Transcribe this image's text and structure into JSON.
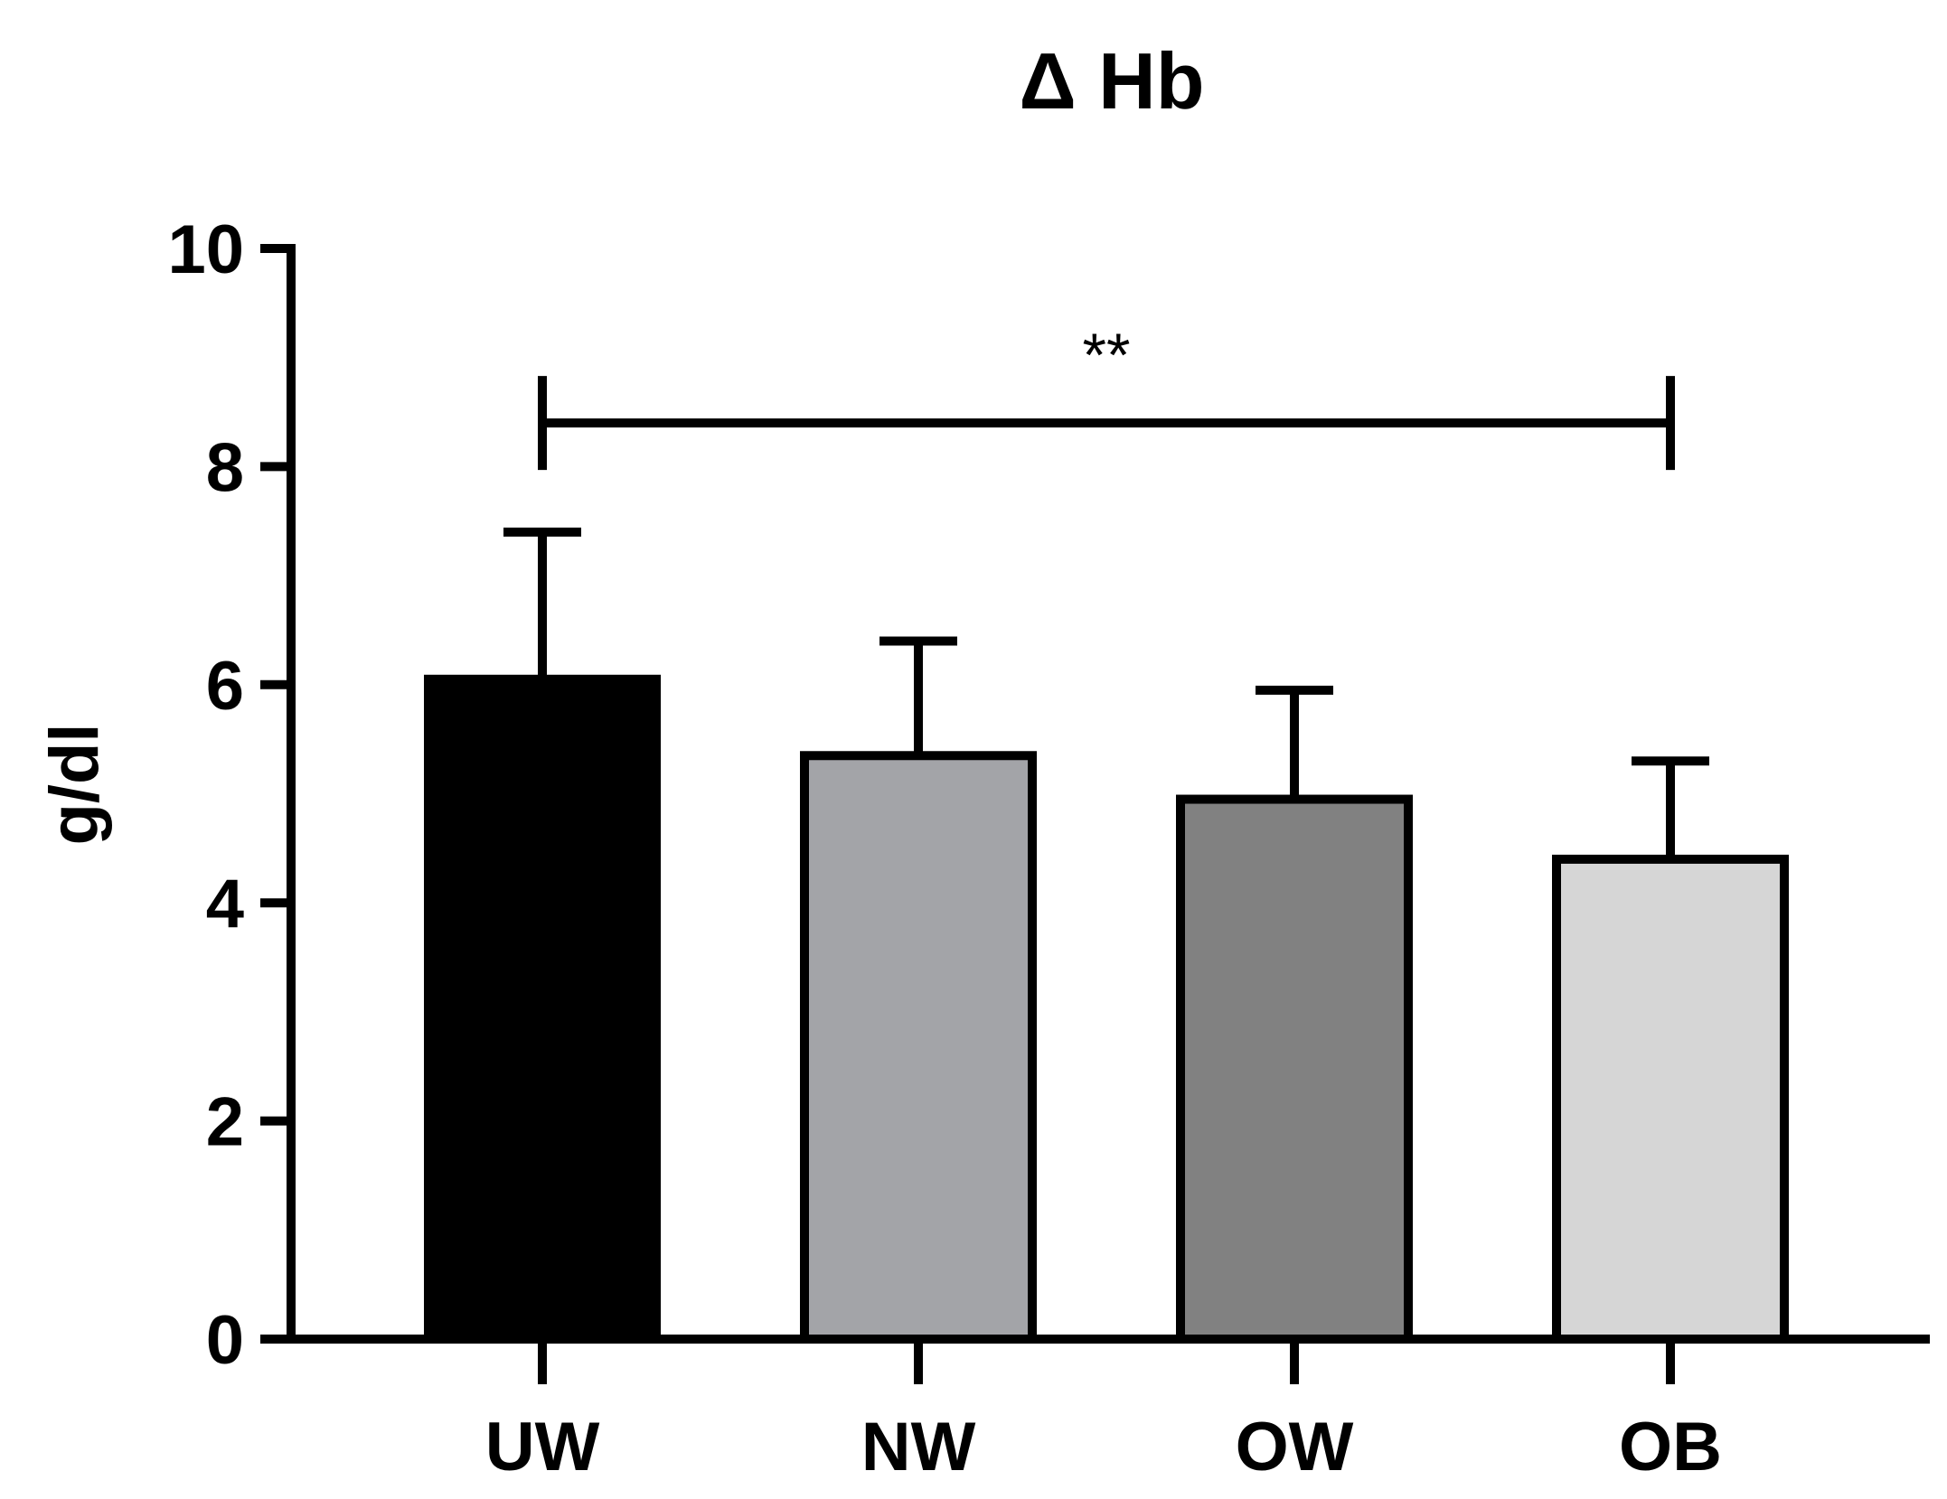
{
  "chart_data": {
    "type": "bar",
    "title": "Δ Hb",
    "xlabel": "",
    "ylabel": "g/dl",
    "ylim": [
      0,
      10
    ],
    "yticks": [
      0,
      2,
      4,
      6,
      8,
      10
    ],
    "categories": [
      "UW",
      "NW",
      "OW",
      "OB"
    ],
    "values": [
      6.05,
      5.35,
      4.95,
      4.4
    ],
    "error_upper": [
      1.35,
      1.05,
      1.0,
      0.9
    ],
    "colors": [
      "#000000",
      "#a3a4a8",
      "#818181",
      "#d6d6d6"
    ],
    "edge_color": "#000000",
    "grid": false,
    "significance": [
      {
        "from": "UW",
        "to": "OB",
        "label": "**",
        "y": 8.4
      }
    ]
  }
}
